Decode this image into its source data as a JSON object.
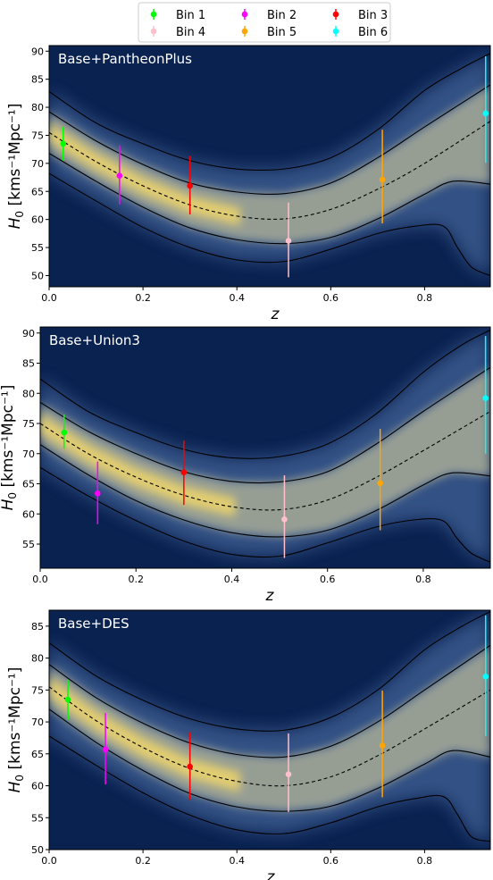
{
  "legend": {
    "entries": [
      {
        "label": "Bin 1",
        "color": "#00ff00"
      },
      {
        "label": "Bin 2",
        "color": "#ff00ff"
      },
      {
        "label": "Bin 3",
        "color": "#ff0000"
      },
      {
        "label": "Bin 4",
        "color": "#ffc0cb"
      },
      {
        "label": "Bin 5",
        "color": "#ffa500"
      },
      {
        "label": "Bin 6",
        "color": "#00ffff"
      }
    ],
    "placement": "top-center",
    "columns": 3
  },
  "colors": {
    "background_dark": "#0a2250",
    "density_high": "#f0d66a",
    "contour_lines": "#000000",
    "median_line": "#000000"
  },
  "chart_data": [
    {
      "type": "scatter",
      "title": "Base+PantheonPlus",
      "xlabel": "z",
      "ylabel": "H_0 [kms^-1Mpc^-1]",
      "ylabel_unit": "kms⁻¹Mpc⁻¹",
      "xlim": [
        0.0,
        0.94
      ],
      "ylim": [
        48,
        91
      ],
      "xticks": [
        0.0,
        0.2,
        0.4,
        0.6,
        0.8
      ],
      "yticks": [
        50,
        55,
        60,
        65,
        70,
        75,
        80,
        85,
        90
      ],
      "series": [
        {
          "name": "Bin 1",
          "x": 0.03,
          "y": 73.5,
          "yerr_low": 70.5,
          "yerr_high": 76.5
        },
        {
          "name": "Bin 2",
          "x": 0.15,
          "y": 67.8,
          "yerr_low": 62.7,
          "yerr_high": 73.2
        },
        {
          "name": "Bin 3",
          "x": 0.3,
          "y": 66.0,
          "yerr_low": 60.9,
          "yerr_high": 71.3
        },
        {
          "name": "Bin 4",
          "x": 0.51,
          "y": 56.2,
          "yerr_low": 49.7,
          "yerr_high": 63.0
        },
        {
          "name": "Bin 5",
          "x": 0.71,
          "y": 67.1,
          "yerr_low": 59.3,
          "yerr_high": 76.0
        },
        {
          "name": "Bin 6",
          "x": 0.93,
          "y": 78.9,
          "yerr_low": 70.1,
          "yerr_high": 89.1
        }
      ],
      "median_curve": {
        "x": [
          0.0,
          0.1,
          0.2,
          0.3,
          0.4,
          0.5,
          0.6,
          0.7,
          0.8,
          0.94
        ],
        "y": [
          75.5,
          70.3,
          66.0,
          62.6,
          60.6,
          60.1,
          61.8,
          65.4,
          70.0,
          77.5
        ]
      },
      "band_inner": {
        "upper": {
          "x": [
            0.0,
            0.1,
            0.2,
            0.3,
            0.4,
            0.5,
            0.6,
            0.7,
            0.8,
            0.94
          ],
          "y": [
            79.2,
            74.0,
            69.8,
            66.5,
            64.9,
            64.6,
            66.5,
            71.0,
            76.5,
            84.0
          ]
        },
        "lower": {
          "x": [
            0.0,
            0.1,
            0.2,
            0.3,
            0.4,
            0.5,
            0.6,
            0.7,
            0.8,
            0.86,
            0.94
          ],
          "y": [
            71.8,
            66.8,
            62.2,
            58.5,
            56.4,
            55.7,
            56.8,
            60.1,
            64.5,
            66.8,
            66.3
          ]
        }
      },
      "band_outer": {
        "upper": {
          "x": [
            0.0,
            0.1,
            0.2,
            0.3,
            0.4,
            0.5,
            0.6,
            0.7,
            0.8,
            0.88,
            0.94
          ],
          "y": [
            82.8,
            77.2,
            73.5,
            70.5,
            69.0,
            69.0,
            71.0,
            76.0,
            83.0,
            87.0,
            89.6
          ]
        },
        "lower": {
          "x": [
            0.0,
            0.1,
            0.2,
            0.3,
            0.4,
            0.5,
            0.6,
            0.7,
            0.78,
            0.84,
            0.87,
            0.9,
            0.94
          ],
          "y": [
            68.2,
            63.3,
            58.6,
            55.0,
            52.8,
            52.5,
            54.7,
            57.5,
            58.8,
            58.8,
            55.0,
            51.5,
            50.0
          ]
        }
      }
    },
    {
      "type": "scatter",
      "title": "Base+Union3",
      "xlabel": "z",
      "ylabel": "H_0 [kms^-1Mpc^-1]",
      "ylabel_unit": "kms⁻¹Mpc⁻¹",
      "xlim": [
        0.0,
        0.94
      ],
      "ylim": [
        51,
        91
      ],
      "xticks": [
        0.0,
        0.2,
        0.4,
        0.6,
        0.8
      ],
      "yticks": [
        55,
        60,
        65,
        70,
        75,
        80,
        85,
        90
      ],
      "series": [
        {
          "name": "Bin 1",
          "x": 0.05,
          "y": 73.5,
          "yerr_low": 70.8,
          "yerr_high": 76.5
        },
        {
          "name": "Bin 2",
          "x": 0.12,
          "y": 63.4,
          "yerr_low": 58.3,
          "yerr_high": 68.7
        },
        {
          "name": "Bin 3",
          "x": 0.3,
          "y": 66.9,
          "yerr_low": 61.5,
          "yerr_high": 72.2
        },
        {
          "name": "Bin 4",
          "x": 0.51,
          "y": 59.1,
          "yerr_low": 52.7,
          "yerr_high": 66.4
        },
        {
          "name": "Bin 5",
          "x": 0.71,
          "y": 65.1,
          "yerr_low": 57.3,
          "yerr_high": 74.1
        },
        {
          "name": "Bin 6",
          "x": 0.93,
          "y": 79.2,
          "yerr_low": 70.0,
          "yerr_high": 89.5
        }
      ],
      "median_curve": {
        "x": [
          0.0,
          0.1,
          0.2,
          0.3,
          0.4,
          0.5,
          0.6,
          0.7,
          0.8,
          0.94
        ],
        "y": [
          75.0,
          70.0,
          66.1,
          63.1,
          61.2,
          60.7,
          62.3,
          66.0,
          70.5,
          77.0
        ]
      },
      "band_inner": {
        "upper": {
          "x": [
            0.0,
            0.1,
            0.2,
            0.3,
            0.4,
            0.5,
            0.6,
            0.7,
            0.8,
            0.94
          ],
          "y": [
            78.5,
            73.7,
            70.0,
            67.0,
            65.4,
            65.3,
            67.0,
            71.5,
            77.0,
            84.3
          ]
        },
        "lower": {
          "x": [
            0.0,
            0.1,
            0.2,
            0.3,
            0.4,
            0.5,
            0.6,
            0.7,
            0.8,
            0.86,
            0.94
          ],
          "y": [
            71.5,
            66.5,
            62.2,
            59.0,
            56.9,
            56.2,
            57.3,
            60.5,
            64.8,
            66.8,
            66.3
          ]
        }
      },
      "band_outer": {
        "upper": {
          "x": [
            0.0,
            0.1,
            0.2,
            0.3,
            0.4,
            0.5,
            0.6,
            0.7,
            0.8,
            0.88,
            0.94
          ],
          "y": [
            82.4,
            77.0,
            73.5,
            70.7,
            69.3,
            69.5,
            71.6,
            76.5,
            83.5,
            88.0,
            90.5
          ]
        },
        "lower": {
          "x": [
            0.0,
            0.1,
            0.2,
            0.3,
            0.4,
            0.5,
            0.6,
            0.7,
            0.78,
            0.84,
            0.87,
            0.9,
            0.94
          ],
          "y": [
            67.7,
            63.0,
            58.9,
            55.5,
            53.3,
            53.0,
            55.2,
            57.8,
            59.0,
            58.9,
            56.0,
            53.5,
            52.0
          ]
        }
      }
    },
    {
      "type": "scatter",
      "title": "Base+DES",
      "xlabel": "z",
      "ylabel": "H_0 [kms^-1Mpc^-1]",
      "ylabel_unit": "kms⁻¹Mpc⁻¹",
      "xlim": [
        0.0,
        0.94
      ],
      "ylim": [
        50,
        87.5
      ],
      "xticks": [
        0.0,
        0.2,
        0.4,
        0.6,
        0.8
      ],
      "yticks": [
        50,
        55,
        60,
        65,
        70,
        75,
        80,
        85
      ],
      "series": [
        {
          "name": "Bin 1",
          "x": 0.04,
          "y": 73.5,
          "yerr_low": 70.3,
          "yerr_high": 76.6
        },
        {
          "name": "Bin 2",
          "x": 0.12,
          "y": 65.7,
          "yerr_low": 60.2,
          "yerr_high": 71.4
        },
        {
          "name": "Bin 3",
          "x": 0.3,
          "y": 63.0,
          "yerr_low": 57.8,
          "yerr_high": 68.4
        },
        {
          "name": "Bin 4",
          "x": 0.51,
          "y": 61.8,
          "yerr_low": 55.9,
          "yerr_high": 68.2
        },
        {
          "name": "Bin 5",
          "x": 0.71,
          "y": 66.3,
          "yerr_low": 58.2,
          "yerr_high": 74.9
        },
        {
          "name": "Bin 6",
          "x": 0.93,
          "y": 77.1,
          "yerr_low": 67.8,
          "yerr_high": 86.7
        }
      ],
      "median_curve": {
        "x": [
          0.0,
          0.1,
          0.2,
          0.3,
          0.4,
          0.5,
          0.6,
          0.7,
          0.8,
          0.94
        ],
        "y": [
          75.5,
          70.2,
          66.0,
          62.7,
          60.7,
          60.0,
          61.4,
          64.7,
          68.9,
          75.0
        ]
      },
      "band_inner": {
        "upper": {
          "x": [
            0.0,
            0.1,
            0.2,
            0.3,
            0.4,
            0.5,
            0.6,
            0.7,
            0.8,
            0.94
          ],
          "y": [
            79.0,
            73.8,
            69.8,
            66.7,
            64.9,
            64.5,
            66.2,
            70.0,
            75.0,
            82.0
          ]
        },
        "lower": {
          "x": [
            0.0,
            0.1,
            0.2,
            0.3,
            0.4,
            0.5,
            0.6,
            0.7,
            0.8,
            0.86,
            0.94
          ],
          "y": [
            72.0,
            66.8,
            62.4,
            58.8,
            56.7,
            56.0,
            56.8,
            59.6,
            63.4,
            65.5,
            64.5
          ]
        }
      },
      "band_outer": {
        "upper": {
          "x": [
            0.0,
            0.1,
            0.2,
            0.3,
            0.4,
            0.5,
            0.6,
            0.7,
            0.8,
            0.88,
            0.94
          ],
          "y": [
            82.4,
            77.2,
            73.4,
            70.5,
            68.9,
            68.7,
            70.7,
            75.0,
            81.3,
            85.0,
            87.3
          ]
        },
        "lower": {
          "x": [
            0.0,
            0.1,
            0.2,
            0.3,
            0.4,
            0.5,
            0.6,
            0.7,
            0.78,
            0.84,
            0.87,
            0.9,
            0.94
          ],
          "y": [
            67.8,
            63.2,
            58.9,
            55.4,
            53.1,
            52.5,
            54.2,
            56.7,
            58.0,
            58.3,
            55.5,
            52.0,
            51.3
          ]
        }
      }
    }
  ]
}
